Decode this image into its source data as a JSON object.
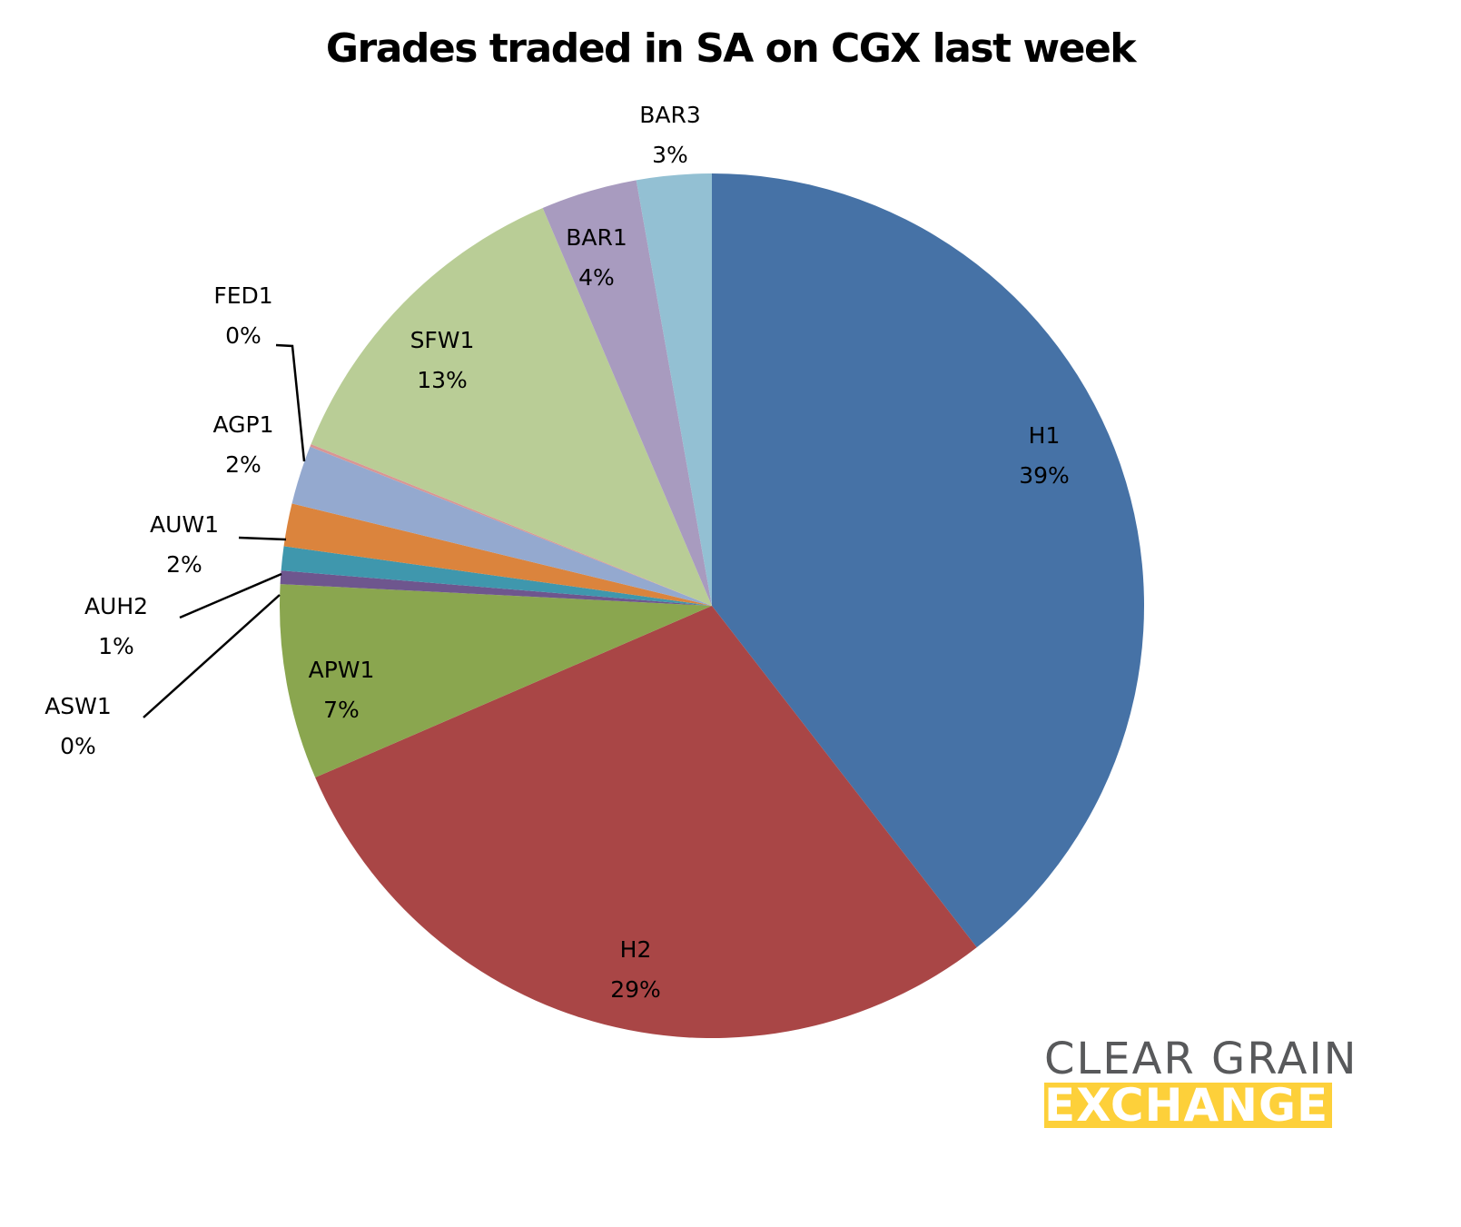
{
  "chart_data": {
    "type": "pie",
    "title": "Grades traded in SA on CGX last week",
    "start_angle_deg": 0,
    "direction": "clockwise",
    "slices": [
      {
        "label": "H1",
        "pct_label": "39%",
        "value": 39.5,
        "color": "#4672a6"
      },
      {
        "label": "H2",
        "pct_label": "29%",
        "value": 29.0,
        "color": "#a94646"
      },
      {
        "label": "APW1",
        "pct_label": "7%",
        "value": 7.3,
        "color": "#8aa64f"
      },
      {
        "label": "ASW1",
        "pct_label": "0%",
        "value": 0.5,
        "color": "#6e568e"
      },
      {
        "label": "AUH2",
        "pct_label": "1%",
        "value": 0.9,
        "color": "#3f97ad"
      },
      {
        "label": "AUW1",
        "pct_label": "2%",
        "value": 1.6,
        "color": "#db843d"
      },
      {
        "label": "AGP1",
        "pct_label": "2%",
        "value": 2.2,
        "color": "#94a9cf"
      },
      {
        "label": "FED1",
        "pct_label": "0%",
        "value": 0.1,
        "color": "#d99694"
      },
      {
        "label": "SFW1",
        "pct_label": "13%",
        "value": 12.5,
        "color": "#b9cd96"
      },
      {
        "label": "BAR1",
        "pct_label": "4%",
        "value": 3.6,
        "color": "#a89bbf"
      },
      {
        "label": "BAR3",
        "pct_label": "3%",
        "value": 2.8,
        "color": "#93c0d3"
      }
    ],
    "legend": "none",
    "data_labels": "category name and percentage"
  },
  "logo": {
    "line1": "CLEAR GRAIN",
    "line2": "EXCHANGE",
    "text_color": "#58595b",
    "accent_color": "#fdd03a"
  }
}
